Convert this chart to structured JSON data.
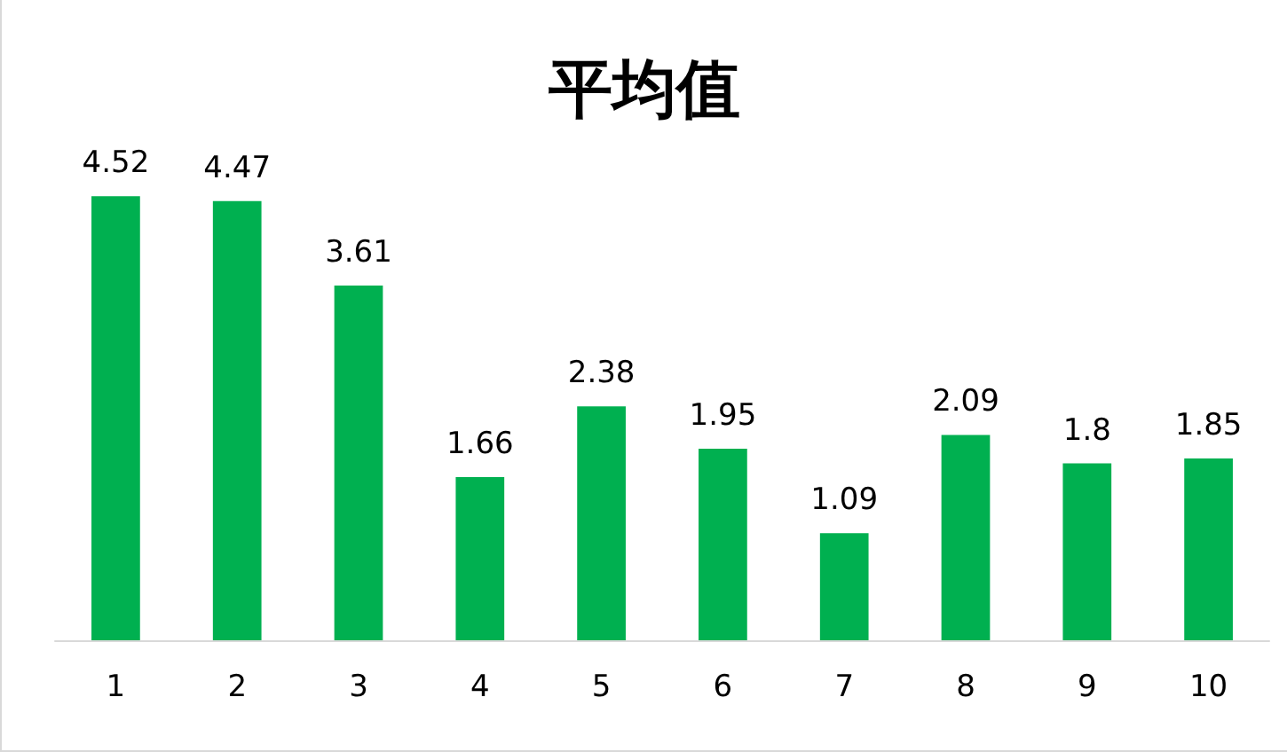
{
  "chart_data": {
    "type": "bar",
    "title": "平均值",
    "categories": [
      "1",
      "2",
      "3",
      "4",
      "5",
      "6",
      "7",
      "8",
      "9",
      "10"
    ],
    "values": [
      4.52,
      4.47,
      3.61,
      1.66,
      2.38,
      1.95,
      1.09,
      2.09,
      1.8,
      1.85
    ],
    "color": "#00b050",
    "data_labels": true
  }
}
